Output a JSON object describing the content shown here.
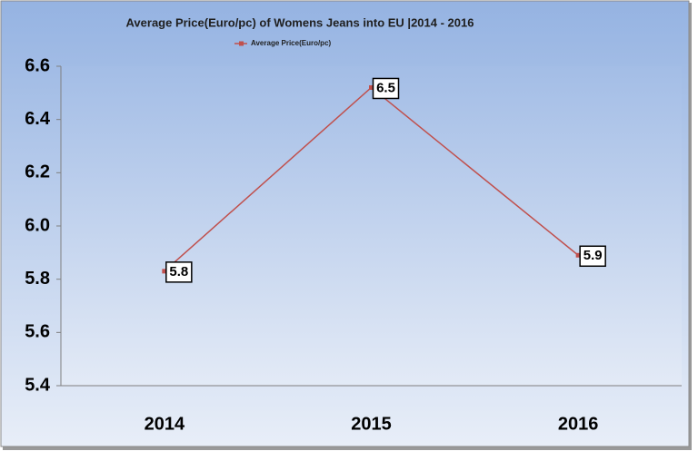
{
  "chart_data": {
    "type": "line",
    "title": "Average Price(Euro/pc) of Womens Jeans into EU |2014 - 2016",
    "categories": [
      "2014",
      "2015",
      "2016"
    ],
    "series": [
      {
        "name": "Average Price(Euro/pc)",
        "color": "#c0504d",
        "values": [
          5.83,
          6.52,
          5.89
        ],
        "value_labels": [
          "5.8",
          "6.5",
          "5.9"
        ]
      }
    ],
    "ylim": [
      5.4,
      6.6
    ],
    "yticks": [
      5.4,
      5.6,
      5.8,
      {
        "value": 6,
        "label": "6.0"
      },
      6.2,
      6.4,
      6.6
    ],
    "grid": false
  }
}
